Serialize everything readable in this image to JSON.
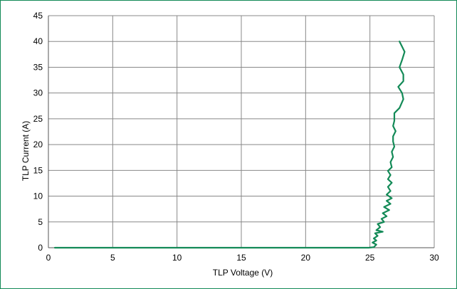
{
  "chart_data": {
    "type": "line",
    "title": "",
    "xlabel": "TLP Voltage (V)",
    "ylabel": "TLP Current (A)",
    "xlim": [
      0,
      30
    ],
    "ylim": [
      0,
      45
    ],
    "x_ticks": [
      "0",
      "5",
      "10",
      "15",
      "20",
      "25",
      "30"
    ],
    "y_ticks": [
      "0",
      "5",
      "10",
      "15",
      "20",
      "25",
      "30",
      "35",
      "40",
      "45"
    ],
    "grid": true,
    "legend": "none",
    "colors": {
      "series": "#138a57",
      "frame": "#138a57",
      "grid": "#888888"
    },
    "series": [
      {
        "points": [
          [
            0.5,
            0.0
          ],
          [
            5,
            0.0
          ],
          [
            10,
            0.0
          ],
          [
            15,
            0.0
          ],
          [
            20,
            0.0
          ],
          [
            24.9,
            0.0
          ],
          [
            25.3,
            0.1
          ],
          [
            25.5,
            0.6
          ],
          [
            25.2,
            1.0
          ],
          [
            25.5,
            1.4
          ],
          [
            25.3,
            1.8
          ],
          [
            25.6,
            2.3
          ],
          [
            25.4,
            2.8
          ],
          [
            26.0,
            3.1
          ],
          [
            25.5,
            3.4
          ],
          [
            25.8,
            4.0
          ],
          [
            25.6,
            4.6
          ],
          [
            26.1,
            5.0
          ],
          [
            25.9,
            5.6
          ],
          [
            26.3,
            6.1
          ],
          [
            26.0,
            6.7
          ],
          [
            26.5,
            7.3
          ],
          [
            26.1,
            7.9
          ],
          [
            26.6,
            8.5
          ],
          [
            26.3,
            9.1
          ],
          [
            26.7,
            9.6
          ],
          [
            26.3,
            10.3
          ],
          [
            26.6,
            11.0
          ],
          [
            26.4,
            11.8
          ],
          [
            26.7,
            12.6
          ],
          [
            26.4,
            13.3
          ],
          [
            26.6,
            14.1
          ],
          [
            26.4,
            14.9
          ],
          [
            26.7,
            15.6
          ],
          [
            26.6,
            16.6
          ],
          [
            26.8,
            17.6
          ],
          [
            26.7,
            18.6
          ],
          [
            26.9,
            19.6
          ],
          [
            26.8,
            20.6
          ],
          [
            26.8,
            21.6
          ],
          [
            27.0,
            22.6
          ],
          [
            26.8,
            23.6
          ],
          [
            26.9,
            24.6
          ],
          [
            26.9,
            26.1
          ],
          [
            27.3,
            27.1
          ],
          [
            27.6,
            28.8
          ],
          [
            27.5,
            30.0
          ],
          [
            27.2,
            31.2
          ],
          [
            27.6,
            32.3
          ],
          [
            27.6,
            33.6
          ],
          [
            27.3,
            35.0
          ],
          [
            27.5,
            36.4
          ],
          [
            27.7,
            38.0
          ],
          [
            27.3,
            40.0
          ]
        ]
      }
    ]
  }
}
